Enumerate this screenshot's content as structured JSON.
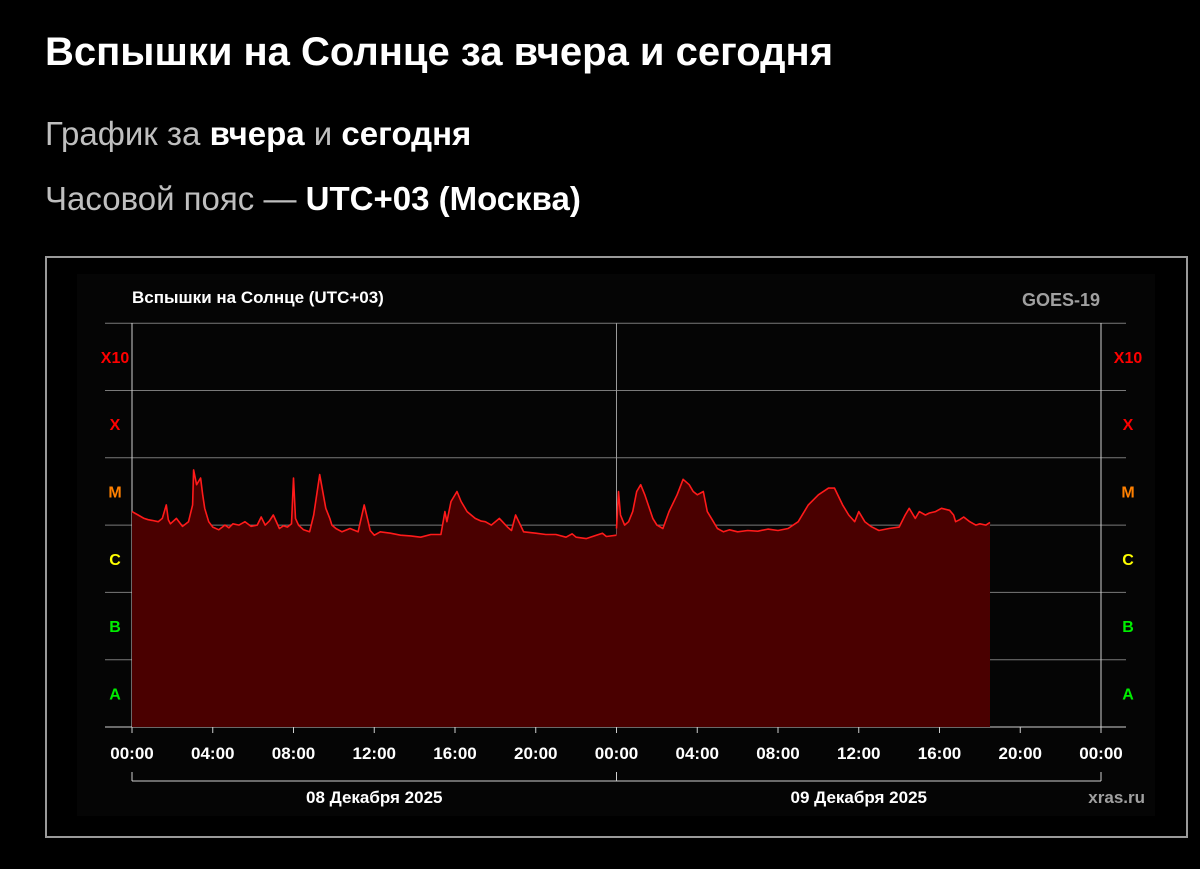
{
  "header": {
    "title": "Вспышки на Солнце за вчера и сегодня",
    "subtitle_prefix": "График за ",
    "subtitle_yesterday": "вчера",
    "subtitle_and": " и ",
    "subtitle_today": "сегодня",
    "timezone_prefix": "Часовой пояс — ",
    "timezone_value": "UTC+03 (Москва)"
  },
  "chart_data": {
    "type": "area",
    "title": "Вспышки на Солнце (UTC+03)",
    "satellite": "GOES-19",
    "watermark": "xras.ru",
    "xlabel": "",
    "ylabel": "",
    "y_scale": "log (flare class)",
    "y_ticks": [
      "A",
      "B",
      "C",
      "M",
      "X",
      "X10"
    ],
    "ylim": [
      0,
      6
    ],
    "y_units": "flare class index (A=1, B=2, C=3, M=4, X=5, X10=6)",
    "xlim_hours": [
      0,
      48
    ],
    "x_ticks": [
      "00:00",
      "04:00",
      "08:00",
      "12:00",
      "16:00",
      "20:00",
      "00:00",
      "04:00",
      "08:00",
      "12:00",
      "16:00",
      "20:00",
      "00:00"
    ],
    "day_labels": [
      "08 Декабря 2025",
      "09 Декабря 2025"
    ],
    "grid": true,
    "colors": {
      "line": "#ff1a1a",
      "fill": "#4a0000",
      "class_X": "#ff0000",
      "class_M": "#ff8000",
      "class_C": "#ffff00",
      "class_AB": "#00ee00"
    },
    "series": [
      {
        "x_hours": [
          0,
          0.3,
          0.6,
          0.8,
          1.0,
          1.3,
          1.5,
          1.7,
          1.8,
          1.9,
          2.2,
          2.5,
          2.8,
          3.0,
          3.05,
          3.2,
          3.4,
          3.5,
          3.6,
          3.8,
          4.0,
          4.3,
          4.6,
          4.8,
          5.0,
          5.3,
          5.6,
          5.9,
          6.2,
          6.4,
          6.6,
          6.8,
          7.0,
          7.3,
          7.5,
          7.7,
          7.9,
          8.0,
          8.1,
          8.25,
          8.5,
          8.8,
          9.0,
          9.3,
          9.6,
          9.8,
          9.9,
          10.1,
          10.4,
          10.8,
          11.2,
          11.5,
          11.7,
          11.8,
          12.0,
          12.3,
          12.8,
          13.3,
          13.8,
          14.3,
          14.8,
          15.3,
          15.5,
          15.6,
          15.8,
          16.1,
          16.3,
          16.6,
          17.0,
          17.3,
          17.5,
          17.8,
          18.2,
          18.6,
          18.8,
          19.0,
          19.4,
          20.0,
          20.5,
          21.0,
          21.5,
          21.8,
          22.0,
          22.5,
          23.0,
          23.3,
          23.5,
          24.0
        ],
        "y": [
          3.2,
          3.15,
          3.1,
          3.08,
          3.07,
          3.05,
          3.1,
          3.3,
          3.08,
          3.02,
          3.1,
          2.98,
          3.05,
          3.3,
          3.82,
          3.6,
          3.7,
          3.45,
          3.25,
          3.05,
          2.97,
          2.93,
          3.0,
          2.96,
          3.02,
          3.0,
          3.05,
          2.98,
          3.0,
          3.12,
          3.0,
          3.06,
          3.15,
          2.95,
          2.99,
          2.97,
          3.02,
          3.7,
          3.1,
          3.0,
          2.93,
          2.9,
          3.15,
          3.75,
          3.25,
          3.1,
          3.0,
          2.95,
          2.9,
          2.95,
          2.9,
          3.3,
          3.05,
          2.92,
          2.85,
          2.9,
          2.88,
          2.85,
          2.84,
          2.82,
          2.86,
          2.86,
          3.2,
          3.05,
          3.35,
          3.5,
          3.35,
          3.2,
          3.1,
          3.06,
          3.05,
          3.0,
          3.1,
          2.97,
          2.92,
          3.15,
          2.9,
          2.88,
          2.86,
          2.86,
          2.82,
          2.87,
          2.82,
          2.8,
          2.85,
          2.88,
          2.83,
          2.85
        ]
      },
      {
        "x_hours": [
          24.0,
          24.1,
          24.2,
          24.4,
          24.6,
          24.8,
          25.0,
          25.2,
          25.4,
          25.8,
          26.0,
          26.3,
          26.6,
          27.0,
          27.3,
          27.6,
          27.8,
          28.0,
          28.3,
          28.5,
          28.8,
          29.0,
          29.3,
          29.6,
          30.0,
          30.5,
          31.0,
          31.5,
          32.0,
          32.5,
          33.0,
          33.5,
          34.0,
          34.5,
          34.8,
          35.2,
          35.5,
          35.8,
          36.0,
          36.3,
          36.6,
          37.0,
          37.5,
          38.0,
          38.3,
          38.5,
          38.8,
          39.0,
          39.3,
          39.5,
          39.8,
          40.1,
          40.5,
          40.7,
          40.8,
          41.0,
          41.2,
          41.5,
          41.8,
          42.0,
          42.3,
          42.5
        ],
        "y": [
          2.95,
          3.5,
          3.15,
          3.0,
          3.05,
          3.2,
          3.5,
          3.6,
          3.45,
          3.1,
          3.0,
          2.95,
          3.2,
          3.45,
          3.68,
          3.6,
          3.5,
          3.45,
          3.5,
          3.2,
          3.05,
          2.95,
          2.9,
          2.93,
          2.9,
          2.92,
          2.91,
          2.94,
          2.92,
          2.95,
          3.05,
          3.3,
          3.45,
          3.55,
          3.55,
          3.3,
          3.15,
          3.05,
          3.2,
          3.05,
          2.98,
          2.92,
          2.95,
          2.97,
          3.15,
          3.25,
          3.1,
          3.2,
          3.15,
          3.18,
          3.2,
          3.25,
          3.22,
          3.15,
          3.05,
          3.08,
          3.12,
          3.05,
          3.0,
          3.02,
          3.0,
          3.04
        ]
      }
    ]
  }
}
